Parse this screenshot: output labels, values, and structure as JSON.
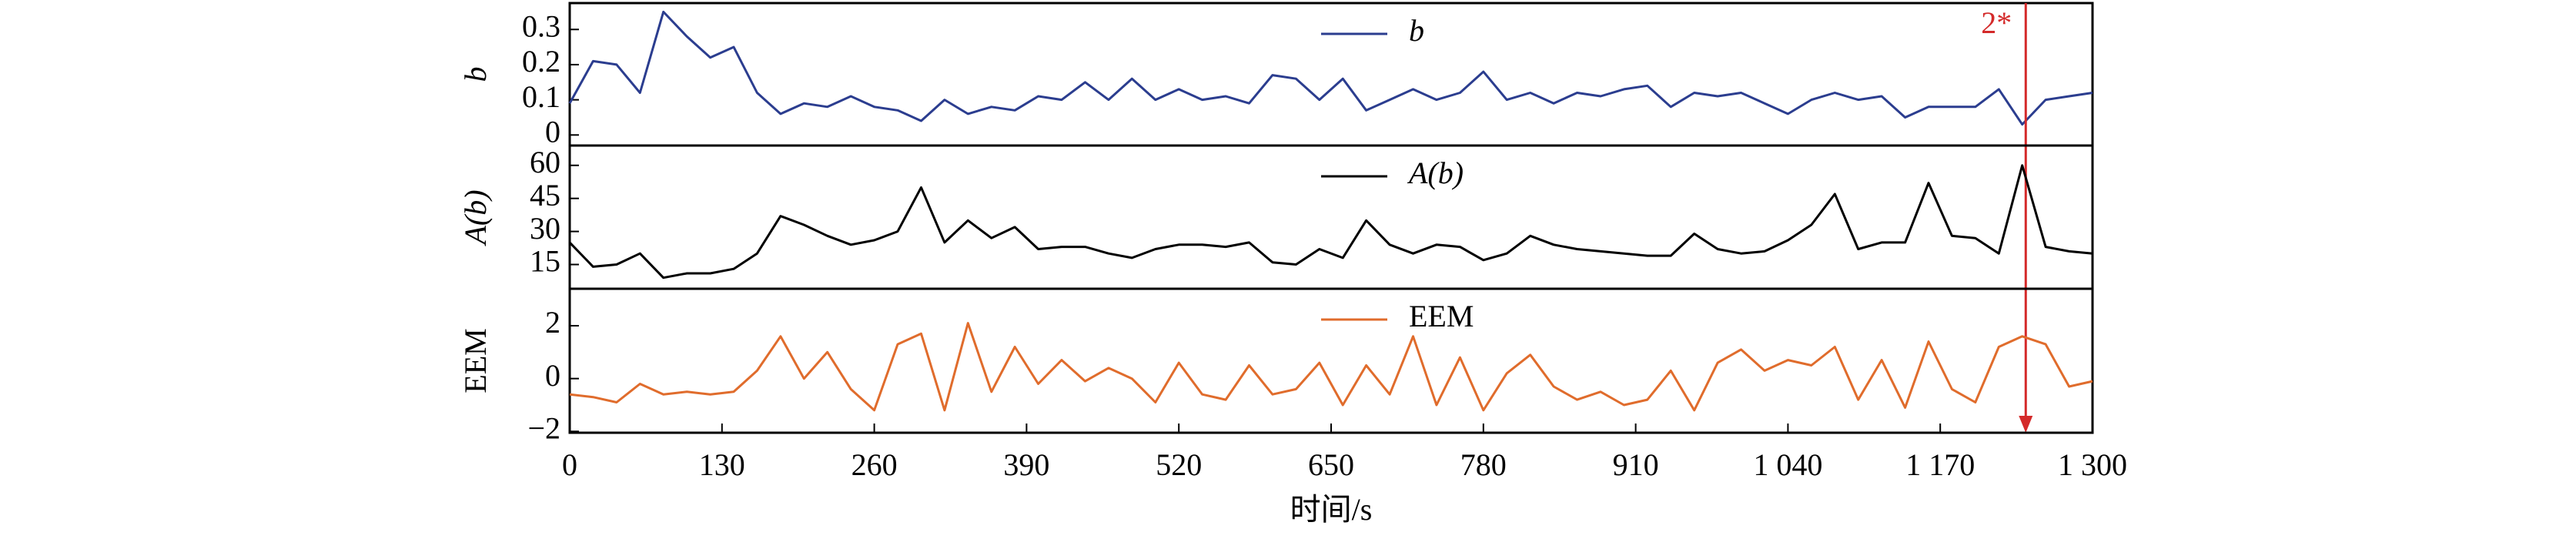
{
  "chart_data": [
    {
      "type": "line",
      "ylabel": "b",
      "legend": "top-center",
      "xlim": [
        0,
        1300
      ],
      "x": [
        0,
        20,
        40,
        60,
        80,
        100,
        120,
        140,
        160,
        180,
        200,
        220,
        240,
        260,
        280,
        300,
        320,
        340,
        360,
        380,
        400,
        420,
        440,
        460,
        480,
        500,
        520,
        540,
        560,
        580,
        600,
        620,
        640,
        660,
        680,
        700,
        720,
        740,
        760,
        780,
        800,
        820,
        840,
        860,
        880,
        900,
        920,
        940,
        960,
        980,
        1000,
        1020,
        1040,
        1060,
        1080,
        1100,
        1120,
        1140,
        1160,
        1180,
        1200,
        1220,
        1240,
        1260,
        1280,
        1300
      ],
      "series": [
        {
          "name": "b",
          "color": "#2b3d8f",
          "values": [
            0.09,
            0.21,
            0.2,
            0.12,
            0.35,
            0.28,
            0.22,
            0.25,
            0.12,
            0.06,
            0.09,
            0.08,
            0.11,
            0.08,
            0.07,
            0.04,
            0.1,
            0.06,
            0.08,
            0.07,
            0.11,
            0.1,
            0.15,
            0.1,
            0.16,
            0.1,
            0.13,
            0.1,
            0.11,
            0.09,
            0.17,
            0.16,
            0.1,
            0.16,
            0.07,
            0.1,
            0.13,
            0.1,
            0.12,
            0.18,
            0.1,
            0.12,
            0.09,
            0.12,
            0.11,
            0.13,
            0.14,
            0.08,
            0.12,
            0.11,
            0.12,
            0.09,
            0.06,
            0.1,
            0.12,
            0.1,
            0.11,
            0.05,
            0.08,
            0.08,
            0.08,
            0.13,
            0.03,
            0.1,
            0.11,
            0.12
          ]
        }
      ],
      "ylim": [
        -0.03,
        0.375
      ],
      "yticks": [
        0,
        0.1,
        0.2,
        0.3
      ],
      "annotation": {
        "text": "2*",
        "x": 1243,
        "color": "#d42a2a"
      }
    },
    {
      "type": "line",
      "ylabel": "A(b)",
      "legend": "top-center",
      "xlim": [
        0,
        1300
      ],
      "x": [
        0,
        20,
        40,
        60,
        80,
        100,
        120,
        140,
        160,
        180,
        200,
        220,
        240,
        260,
        280,
        300,
        320,
        340,
        360,
        380,
        400,
        420,
        440,
        460,
        480,
        500,
        520,
        540,
        560,
        580,
        600,
        620,
        640,
        660,
        680,
        700,
        720,
        740,
        760,
        780,
        800,
        820,
        840,
        860,
        880,
        900,
        920,
        940,
        960,
        980,
        1000,
        1020,
        1040,
        1060,
        1080,
        1100,
        1120,
        1140,
        1160,
        1180,
        1200,
        1220,
        1240,
        1260,
        1280,
        1300
      ],
      "series": [
        {
          "name": "A(b)",
          "color": "#000000",
          "values": [
            25,
            14,
            15,
            20,
            9,
            11,
            11,
            13,
            20,
            37,
            33,
            28,
            24,
            26,
            30,
            50,
            25,
            35,
            27,
            32,
            22,
            23,
            23,
            20,
            18,
            22,
            24,
            24,
            23,
            25,
            16,
            15,
            22,
            18,
            35,
            24,
            20,
            24,
            23,
            17,
            20,
            28,
            24,
            22,
            21,
            20,
            19,
            19,
            29,
            22,
            20,
            21,
            26,
            33,
            47,
            22,
            25,
            25,
            52,
            28,
            27,
            20,
            60,
            23,
            21,
            20
          ]
        }
      ],
      "ylim": [
        4,
        69
      ],
      "yticks": [
        15,
        30,
        45,
        60
      ]
    },
    {
      "type": "line",
      "ylabel": "EEM",
      "legend": "top-center",
      "xlim": [
        0,
        1300
      ],
      "xlabel": "时间/s",
      "xticks": [
        0,
        130,
        260,
        390,
        520,
        650,
        780,
        910,
        {
          "value": 1040,
          "label": "1 040"
        },
        {
          "value": 1170,
          "label": "1 170"
        },
        {
          "value": 1300,
          "label": "1 300"
        }
      ],
      "x": [
        0,
        20,
        40,
        60,
        80,
        100,
        120,
        140,
        160,
        180,
        200,
        220,
        240,
        260,
        280,
        300,
        320,
        340,
        360,
        380,
        400,
        420,
        440,
        460,
        480,
        500,
        520,
        540,
        560,
        580,
        600,
        620,
        640,
        660,
        680,
        700,
        720,
        740,
        760,
        780,
        800,
        820,
        840,
        860,
        880,
        900,
        920,
        940,
        960,
        980,
        1000,
        1020,
        1040,
        1060,
        1080,
        1100,
        1120,
        1140,
        1160,
        1180,
        1200,
        1220,
        1240,
        1260,
        1280,
        1300
      ],
      "series": [
        {
          "name": "EEM",
          "color": "#e06c2c",
          "values": [
            -0.6,
            -0.7,
            -0.9,
            -0.2,
            -0.6,
            -0.5,
            -0.6,
            -0.5,
            0.3,
            1.6,
            0,
            1,
            -0.4,
            -1.2,
            1.3,
            1.7,
            -1.2,
            2.1,
            -0.5,
            1.2,
            -0.2,
            0.7,
            -0.1,
            0.4,
            0,
            -0.9,
            0.6,
            -0.6,
            -0.8,
            0.5,
            -0.6,
            -0.4,
            0.6,
            -1.0,
            0.5,
            -0.6,
            1.6,
            -1.0,
            0.8,
            -1.2,
            0.2,
            0.9,
            -0.3,
            -0.8,
            -0.5,
            -1.0,
            -0.8,
            0.3,
            -1.2,
            0.6,
            1.1,
            0.3,
            0.7,
            0.5,
            1.2,
            -0.8,
            0.7,
            -1.1,
            1.4,
            -0.4,
            -0.9,
            1.2,
            1.6,
            1.3,
            -0.3,
            -0.1
          ]
        }
      ],
      "ylim": [
        -2.05,
        3.4
      ],
      "yticks": [
        {
          "value": -2,
          "label": "−2"
        },
        0,
        2
      ]
    }
  ]
}
